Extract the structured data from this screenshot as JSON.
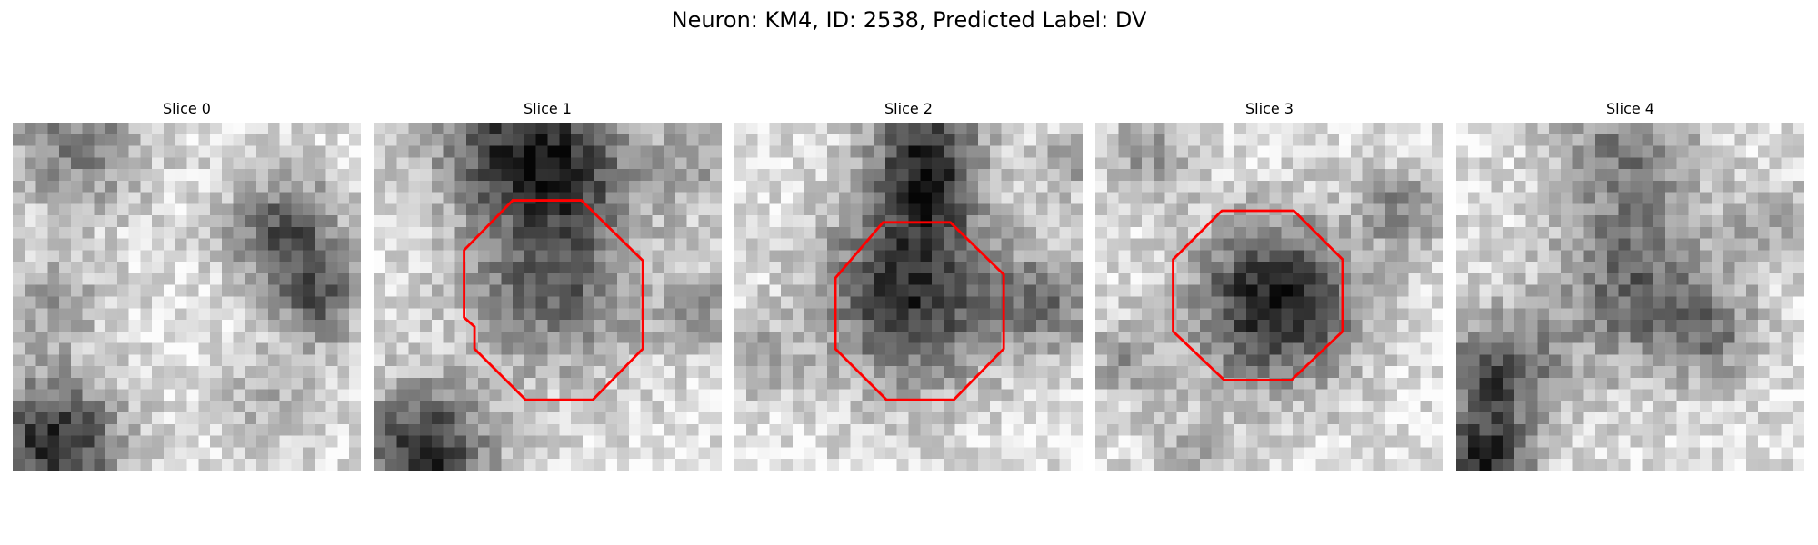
{
  "figure": {
    "title": "Neuron: KM4, ID: 2538, Predicted Label: DV"
  },
  "outline_color": "#ff0000",
  "colormap": "gray",
  "panels": [
    {
      "title": "Slice 0",
      "has_outline": false
    },
    {
      "title": "Slice 1",
      "has_outline": true
    },
    {
      "title": "Slice 2",
      "has_outline": true
    },
    {
      "title": "Slice 3",
      "has_outline": true
    },
    {
      "title": "Slice 4",
      "has_outline": false
    }
  ]
}
